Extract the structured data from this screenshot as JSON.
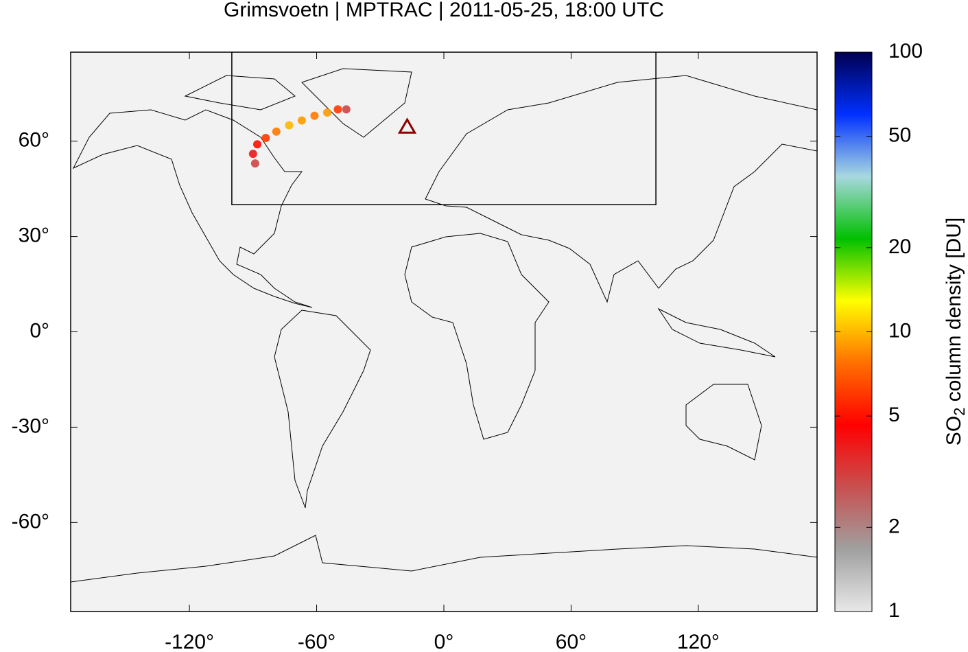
{
  "chart_data": {
    "type": "map",
    "title": "Grimsvoetn | MPTRAC | 2011-05-25, 18:00 UTC",
    "xlim": [
      -176,
      176
    ],
    "ylim": [
      -88,
      88
    ],
    "xticks": [
      {
        "value": -120,
        "label": "-120°"
      },
      {
        "value": -60,
        "label": "-60°"
      },
      {
        "value": 0,
        "label": "0°"
      },
      {
        "value": 60,
        "label": "60°"
      },
      {
        "value": 120,
        "label": "120°"
      }
    ],
    "yticks": [
      {
        "value": 60,
        "label": "60°"
      },
      {
        "value": 30,
        "label": "30°"
      },
      {
        "value": 0,
        "label": "0°"
      },
      {
        "value": -30,
        "label": "-30°"
      },
      {
        "value": -60,
        "label": "-60°"
      }
    ],
    "background": "#f2f2f2",
    "region": {
      "lon": [
        -100,
        100
      ],
      "lat": [
        40,
        90
      ]
    },
    "volcano": {
      "lon": -17.3,
      "lat": 64.4,
      "color": "#8b0000"
    },
    "plume": {
      "lon": [
        -89,
        -90,
        -88,
        -84,
        -79,
        -73,
        -67,
        -61,
        -55,
        -50,
        -46
      ],
      "lat": [
        53,
        56,
        59,
        61,
        63,
        65,
        66.5,
        68,
        69,
        70,
        70
      ],
      "so2": [
        3,
        4,
        5,
        6,
        8,
        10,
        9,
        8,
        9,
        6,
        3
      ]
    },
    "colorbar": {
      "log_scale": true,
      "lim": [
        1,
        100
      ],
      "ticks": [
        1,
        2,
        5,
        10,
        20,
        50,
        100
      ],
      "label": {
        "main": "SO",
        "sub": "2",
        "rest": " column density [DU]"
      },
      "colormap": [
        "#e8e8e8",
        "#a0a0a0",
        "#c85050",
        "#ff0000",
        "#ff7000",
        "#ffff00",
        "#00c000",
        "#a8d8e0",
        "#0030ff",
        "#000050"
      ]
    }
  }
}
